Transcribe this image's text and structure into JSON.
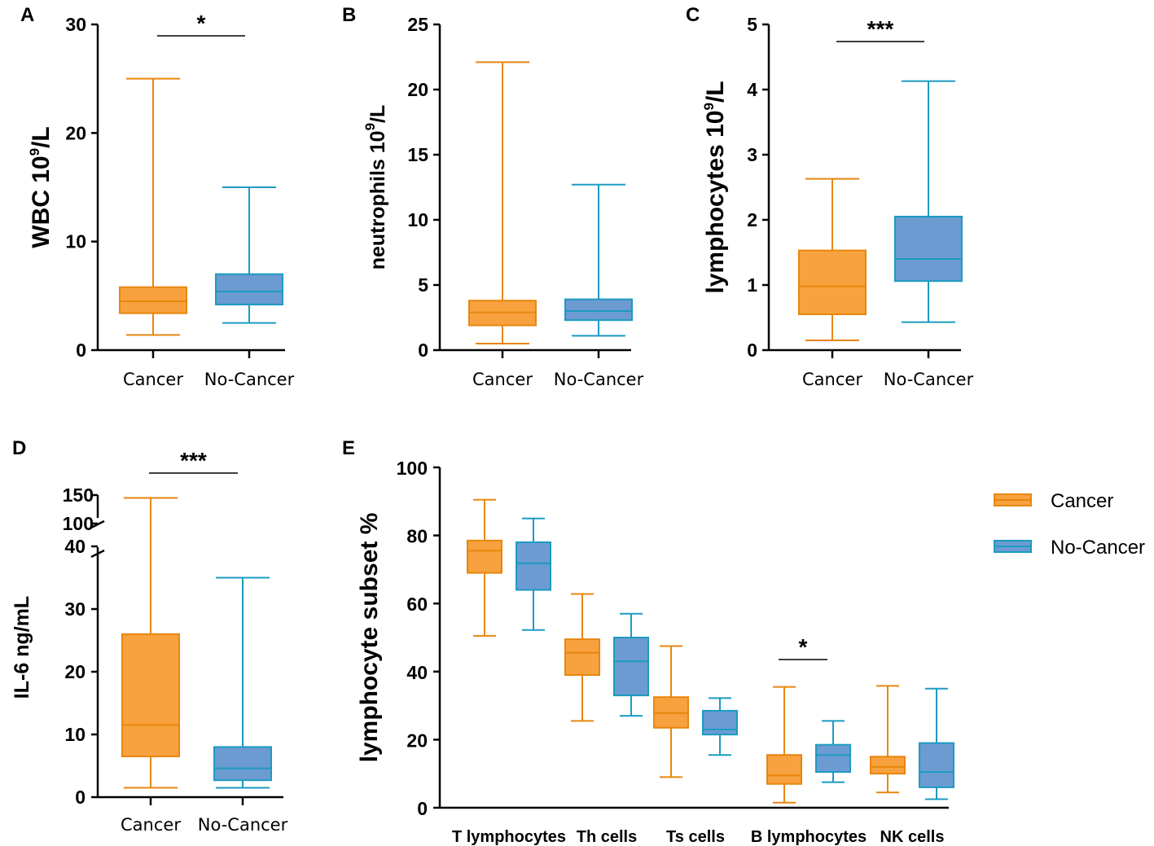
{
  "colors": {
    "cancer_fill": "#f7a23e",
    "cancer_stroke": "#e8860f",
    "nocancer_fill": "#6c9bd2",
    "nocancer_stroke": "#1c9bc2",
    "axis": "#000000"
  },
  "chart_data": [
    {
      "id": "A",
      "type": "box",
      "panel_label": "A",
      "ylabel": "WBC 10",
      "ylabel_sup": "9",
      "ylabel_suffix": "/L",
      "ylim": [
        0,
        30
      ],
      "yticks": [
        0,
        10,
        20,
        30
      ],
      "categories": [
        "Cancer",
        "No-Cancer"
      ],
      "series": [
        {
          "name": "Cancer",
          "min": 1.4,
          "q1": 3.4,
          "median": 4.5,
          "q3": 5.8,
          "max": 25.0
        },
        {
          "name": "No-Cancer",
          "min": 2.5,
          "q1": 4.2,
          "median": 5.4,
          "q3": 7.0,
          "max": 15.0
        }
      ],
      "significance": "*"
    },
    {
      "id": "B",
      "type": "box",
      "panel_label": "B",
      "ylabel": "neutrophils 10",
      "ylabel_sup": "9",
      "ylabel_suffix": "/L",
      "ylim": [
        0,
        25
      ],
      "yticks": [
        0,
        5,
        10,
        15,
        20,
        25
      ],
      "categories": [
        "Cancer",
        "No-Cancer"
      ],
      "series": [
        {
          "name": "Cancer",
          "min": 0.5,
          "q1": 1.9,
          "median": 2.9,
          "q3": 3.8,
          "max": 22.1
        },
        {
          "name": "No-Cancer",
          "min": 1.1,
          "q1": 2.3,
          "median": 3.0,
          "q3": 3.9,
          "max": 12.7
        }
      ],
      "significance": ""
    },
    {
      "id": "C",
      "type": "box",
      "panel_label": "C",
      "ylabel": "lymphocytes 10",
      "ylabel_sup": "9",
      "ylabel_suffix": "/L",
      "ylim": [
        0,
        5
      ],
      "yticks": [
        0,
        1,
        2,
        3,
        4,
        5
      ],
      "categories": [
        "Cancer",
        "No-Cancer"
      ],
      "series": [
        {
          "name": "Cancer",
          "min": 0.15,
          "q1": 0.55,
          "median": 0.98,
          "q3": 1.53,
          "max": 2.63
        },
        {
          "name": "No-Cancer",
          "min": 0.43,
          "q1": 1.06,
          "median": 1.4,
          "q3": 2.05,
          "max": 4.13
        }
      ],
      "significance": "***"
    },
    {
      "id": "D",
      "type": "box",
      "panel_label": "D",
      "ylabel": "IL-6 ng/mL",
      "ylim": [
        0,
        40
      ],
      "yticks": [
        0,
        10,
        20,
        30,
        40
      ],
      "upper_ticks": [
        100,
        150
      ],
      "categories": [
        "Cancer",
        "No-Cancer"
      ],
      "series": [
        {
          "name": "Cancer",
          "min": 1.5,
          "q1": 6.5,
          "median": 11.5,
          "q3": 26.0,
          "max": 145
        },
        {
          "name": "No-Cancer",
          "min": 1.5,
          "q1": 2.7,
          "median": 4.6,
          "q3": 8.0,
          "max": 35.0
        }
      ],
      "significance": "***"
    },
    {
      "id": "E",
      "type": "box",
      "panel_label": "E",
      "ylabel": "lymphocyte subset %",
      "ylim": [
        0,
        100
      ],
      "yticks": [
        0,
        20,
        40,
        60,
        80,
        100
      ],
      "categories": [
        "T lymphocytes",
        "Th cells",
        "Ts cells",
        "B lymphocytes",
        "NK cells"
      ],
      "series": [
        {
          "name": "Cancer",
          "boxes": [
            {
              "min": 50.5,
              "q1": 69.0,
              "median": 75.5,
              "q3": 78.5,
              "max": 90.5
            },
            {
              "min": 25.5,
              "q1": 39.0,
              "median": 45.5,
              "q3": 49.5,
              "max": 62.8
            },
            {
              "min": 9.0,
              "q1": 23.5,
              "median": 27.8,
              "q3": 32.5,
              "max": 47.5
            },
            {
              "min": 1.5,
              "q1": 7.0,
              "median": 9.5,
              "q3": 15.5,
              "max": 35.5
            },
            {
              "min": 4.5,
              "q1": 10.0,
              "median": 12.0,
              "q3": 15.0,
              "max": 35.8
            }
          ]
        },
        {
          "name": "No-Cancer",
          "boxes": [
            {
              "min": 52.2,
              "q1": 64.0,
              "median": 71.8,
              "q3": 78.0,
              "max": 85.0
            },
            {
              "min": 27.0,
              "q1": 33.0,
              "median": 43.0,
              "q3": 50.0,
              "max": 57.0
            },
            {
              "min": 15.5,
              "q1": 21.5,
              "median": 23.0,
              "q3": 28.5,
              "max": 32.2
            },
            {
              "min": 7.5,
              "q1": 10.5,
              "median": 15.5,
              "q3": 18.5,
              "max": 25.5
            },
            {
              "min": 2.5,
              "q1": 6.0,
              "median": 10.5,
              "q3": 19.0,
              "max": 35.0
            }
          ]
        }
      ],
      "significance_label": "*",
      "significance_category": "B lymphocytes",
      "legend": [
        "Cancer",
        "No-Cancer"
      ]
    }
  ]
}
